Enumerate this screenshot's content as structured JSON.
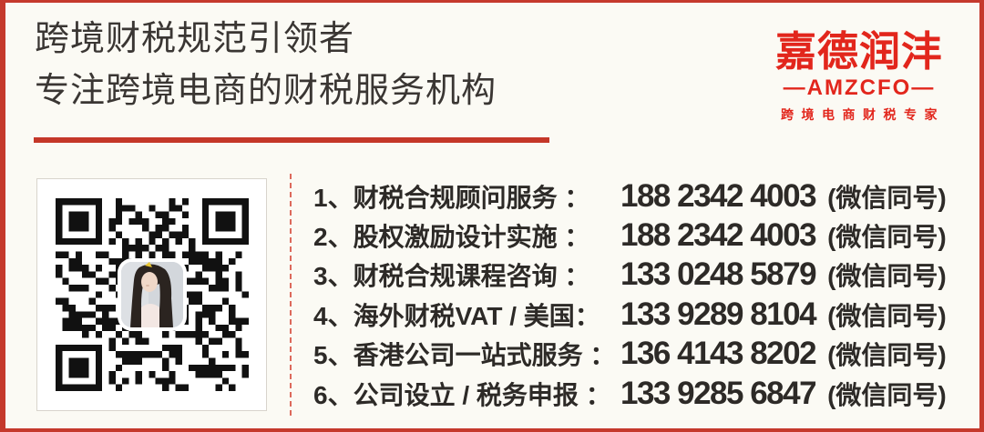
{
  "colors": {
    "accent_red": "#c5392c",
    "logo_red": "#e2261c",
    "background": "#fbfaf4",
    "heading_text": "#3a3633",
    "list_text": "#2d2a27",
    "divider_red": "#dd6a5c"
  },
  "header": {
    "tagline_line1": "跨境财税规范引领者",
    "tagline_line2": "专注跨境电商的财税服务机构"
  },
  "logo": {
    "name": "嘉德润沣",
    "subtitle": "—AMZCFO—",
    "slogan": "跨境电商财税专家"
  },
  "qr": {
    "icon": "wechat-qr-code",
    "center_icon": "contact-avatar-photo"
  },
  "services": [
    {
      "no": "1、",
      "label": "财税合规顾问服务 ：",
      "phone": "188 2342 4003",
      "note": "(微信同号)"
    },
    {
      "no": "2、",
      "label": "股权激励设计实施 ：",
      "phone": "188 2342 4003",
      "note": "(微信同号)"
    },
    {
      "no": "3、",
      "label": "财税合规课程咨询 ：",
      "phone": "133 0248 5879",
      "note": "(微信同号)"
    },
    {
      "no": "4、",
      "label": "海外财税VAT / 美国：",
      "phone": "133 9289 8104",
      "note": "(微信同号)"
    },
    {
      "no": "5、",
      "label": "香港公司一站式服务 ：",
      "phone": "136 4143 8202",
      "note": "(微信同号)"
    },
    {
      "no": "6、",
      "label": "公司设立 / 税务申报 ：",
      "phone": "133 9285 6847",
      "note": "(微信同号)"
    }
  ]
}
